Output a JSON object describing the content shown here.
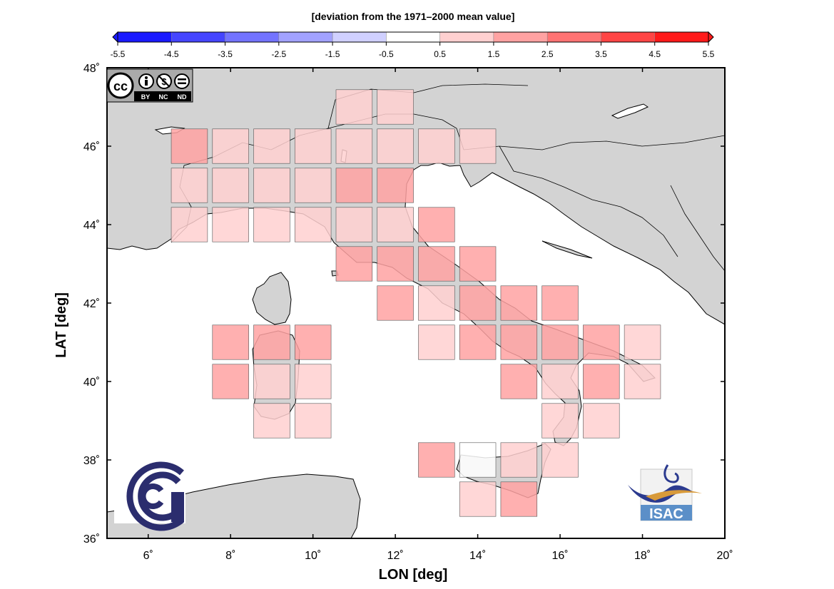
{
  "colorbar": {
    "title": "[deviation from the 1971–2000 mean value]",
    "ticks": [
      "-5.5",
      "-4.5",
      "-3.5",
      "-2.5",
      "-1.5",
      "-0.5",
      "0.5",
      "1.5",
      "2.5",
      "3.5",
      "4.5",
      "5.5"
    ],
    "colors": [
      "#1a1aff",
      "#4545ff",
      "#7373ff",
      "#a2a2ff",
      "#d0d0ff",
      "#ffffff",
      "#ffd0d0",
      "#ffa2a2",
      "#ff7373",
      "#ff4545",
      "#ff1a1a"
    ]
  },
  "axes": {
    "xlabel": "LON [deg]",
    "ylabel": "LAT [deg]",
    "x_ticks": [
      "6˚",
      "8˚",
      "10˚",
      "12˚",
      "14˚",
      "16˚",
      "18˚",
      "20˚"
    ],
    "y_ticks": [
      "48˚",
      "46˚",
      "44˚",
      "42˚",
      "40˚",
      "38˚",
      "36˚"
    ]
  },
  "logos": {
    "cc_license": [
      "BY",
      "NC",
      "ND"
    ],
    "isac": "ISAC"
  },
  "chart_data": {
    "type": "heatmap",
    "xlim": [
      5,
      20
    ],
    "ylim": [
      36,
      48
    ],
    "cell_size_deg": 1,
    "unit_note": "class index: 0 = [-0.5, 0.5], 1 = [0.5, 1.5], 2 = [1.5, 2.5]",
    "cells": [
      {
        "lon": 11,
        "lat": 47,
        "class": 1
      },
      {
        "lon": 12,
        "lat": 47,
        "class": 1
      },
      {
        "lon": 7,
        "lat": 46,
        "class": 2
      },
      {
        "lon": 8,
        "lat": 46,
        "class": 1
      },
      {
        "lon": 9,
        "lat": 46,
        "class": 1
      },
      {
        "lon": 10,
        "lat": 46,
        "class": 1
      },
      {
        "lon": 11,
        "lat": 46,
        "class": 1
      },
      {
        "lon": 12,
        "lat": 46,
        "class": 1
      },
      {
        "lon": 13,
        "lat": 46,
        "class": 1
      },
      {
        "lon": 14,
        "lat": 46,
        "class": 1
      },
      {
        "lon": 7,
        "lat": 45,
        "class": 1
      },
      {
        "lon": 8,
        "lat": 45,
        "class": 1
      },
      {
        "lon": 9,
        "lat": 45,
        "class": 1
      },
      {
        "lon": 10,
        "lat": 45,
        "class": 1
      },
      {
        "lon": 11,
        "lat": 45,
        "class": 2
      },
      {
        "lon": 12,
        "lat": 45,
        "class": 2
      },
      {
        "lon": 7,
        "lat": 44,
        "class": 1
      },
      {
        "lon": 8,
        "lat": 44,
        "class": 1
      },
      {
        "lon": 9,
        "lat": 44,
        "class": 1
      },
      {
        "lon": 10,
        "lat": 44,
        "class": 1
      },
      {
        "lon": 11,
        "lat": 44,
        "class": 1
      },
      {
        "lon": 12,
        "lat": 44,
        "class": 1
      },
      {
        "lon": 13,
        "lat": 44,
        "class": 2
      },
      {
        "lon": 11,
        "lat": 43,
        "class": 2
      },
      {
        "lon": 12,
        "lat": 43,
        "class": 2
      },
      {
        "lon": 13,
        "lat": 43,
        "class": 2
      },
      {
        "lon": 14,
        "lat": 43,
        "class": 2
      },
      {
        "lon": 12,
        "lat": 42,
        "class": 2
      },
      {
        "lon": 13,
        "lat": 42,
        "class": 1
      },
      {
        "lon": 14,
        "lat": 42,
        "class": 2
      },
      {
        "lon": 15,
        "lat": 42,
        "class": 2
      },
      {
        "lon": 16,
        "lat": 42,
        "class": 2
      },
      {
        "lon": 8,
        "lat": 41,
        "class": 2
      },
      {
        "lon": 9,
        "lat": 41,
        "class": 2
      },
      {
        "lon": 10,
        "lat": 41,
        "class": 2
      },
      {
        "lon": 13,
        "lat": 41,
        "class": 1
      },
      {
        "lon": 14,
        "lat": 41,
        "class": 2
      },
      {
        "lon": 15,
        "lat": 41,
        "class": 2
      },
      {
        "lon": 16,
        "lat": 41,
        "class": 2
      },
      {
        "lon": 17,
        "lat": 41,
        "class": 2
      },
      {
        "lon": 18,
        "lat": 41,
        "class": 1
      },
      {
        "lon": 8,
        "lat": 40,
        "class": 2
      },
      {
        "lon": 9,
        "lat": 40,
        "class": 1
      },
      {
        "lon": 10,
        "lat": 40,
        "class": 1
      },
      {
        "lon": 15,
        "lat": 40,
        "class": 2
      },
      {
        "lon": 16,
        "lat": 40,
        "class": 1
      },
      {
        "lon": 17,
        "lat": 40,
        "class": 2
      },
      {
        "lon": 18,
        "lat": 40,
        "class": 1
      },
      {
        "lon": 9,
        "lat": 39,
        "class": 1
      },
      {
        "lon": 10,
        "lat": 39,
        "class": 1
      },
      {
        "lon": 16,
        "lat": 39,
        "class": 1
      },
      {
        "lon": 17,
        "lat": 39,
        "class": 1
      },
      {
        "lon": 13,
        "lat": 38,
        "class": 2
      },
      {
        "lon": 14,
        "lat": 38,
        "class": 0
      },
      {
        "lon": 15,
        "lat": 38,
        "class": 1
      },
      {
        "lon": 16,
        "lat": 38,
        "class": 1
      },
      {
        "lon": 14,
        "lat": 37,
        "class": 1
      },
      {
        "lon": 15,
        "lat": 37,
        "class": 2
      }
    ]
  }
}
